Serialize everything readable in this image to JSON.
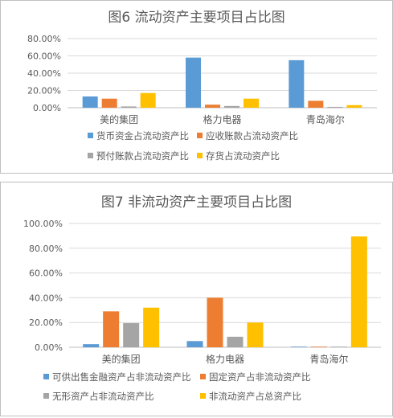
{
  "chart_data": [
    {
      "type": "bar",
      "title": "图6  流动资产主要项目占比图",
      "categories": [
        "美的集团",
        "格力电器",
        "青岛海尔"
      ],
      "yticks": [
        "0.00%",
        "20.00%",
        "40.00%",
        "60.00%",
        "80.00%"
      ],
      "ylim": [
        0,
        80
      ],
      "grid": true,
      "legend_position": "bottom",
      "series": [
        {
          "name": "货币资金占流动资产比",
          "color": "#5b9bd5",
          "values": [
            13,
            58,
            55
          ]
        },
        {
          "name": "应收账款占流动资产比",
          "color": "#ed7d31",
          "values": [
            10.5,
            3.5,
            8
          ]
        },
        {
          "name": "预付账款占流动资产比",
          "color": "#a5a5a5",
          "values": [
            1.5,
            2,
            1
          ]
        },
        {
          "name": "存货占流动资产比",
          "color": "#ffc000",
          "values": [
            17,
            10.5,
            3
          ]
        }
      ]
    },
    {
      "type": "bar",
      "title": "图7  非流动资产主要项目占比图",
      "categories": [
        "美的集团",
        "格力电器",
        "青岛海尔"
      ],
      "yticks": [
        "0.00%",
        "20.00%",
        "40.00%",
        "60.00%",
        "80.00%",
        "100.00%"
      ],
      "ylim": [
        0,
        100
      ],
      "grid": true,
      "legend_position": "bottom",
      "series": [
        {
          "name": "可供出售金融资产占非流动资产比",
          "color": "#5b9bd5",
          "values": [
            2.5,
            5,
            0.5
          ]
        },
        {
          "name": "固定资产占非流动资产比",
          "color": "#ed7d31",
          "values": [
            29,
            40,
            0.5
          ]
        },
        {
          "name": "无形资产占非流动资产比",
          "color": "#a5a5a5",
          "values": [
            19.5,
            8.5,
            0.5
          ]
        },
        {
          "name": "非流动资产占总资产比",
          "color": "#ffc000",
          "values": [
            32,
            20,
            89.5
          ]
        }
      ]
    }
  ]
}
